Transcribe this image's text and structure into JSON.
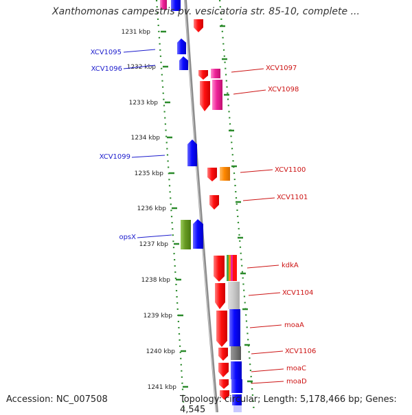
{
  "title": "Xanthomonas campestris pv. vesicatoria str. 85-10, complete ...",
  "accession_label": "Accession: NC_007508",
  "topology_label": "Topology: circular; Length: 5,178,466 bp; Genes: 4,545",
  "scale_ticks": [
    "1231 kbp",
    "1232 kbp",
    "1233 kbp",
    "1234 kbp",
    "1235 kbp",
    "1236 kbp",
    "1237 kbp",
    "1238 kbp",
    "1239 kbp",
    "1240 kbp",
    "1241 kbp"
  ],
  "left_strand_genes": [
    "XCV1095",
    "XCV1096",
    "XCV1099",
    "opsX"
  ],
  "right_strand_genes": [
    "XCV1097",
    "XCV1098",
    "XCV1100",
    "XCV1101",
    "kdkA",
    "XCV1104",
    "moaA",
    "XCV1106",
    "moaC",
    "moaD"
  ],
  "colors": {
    "left_label": "#1a1acc",
    "right_label": "#cc1111",
    "gene_blue": "#0a0aff",
    "gene_red": "#ff1111",
    "gene_pink": "#ee2299",
    "gene_orange": "#ff8800",
    "gene_olive": "#669922",
    "backbone": "#8c8c8c",
    "dots": "#2a8a2a"
  }
}
